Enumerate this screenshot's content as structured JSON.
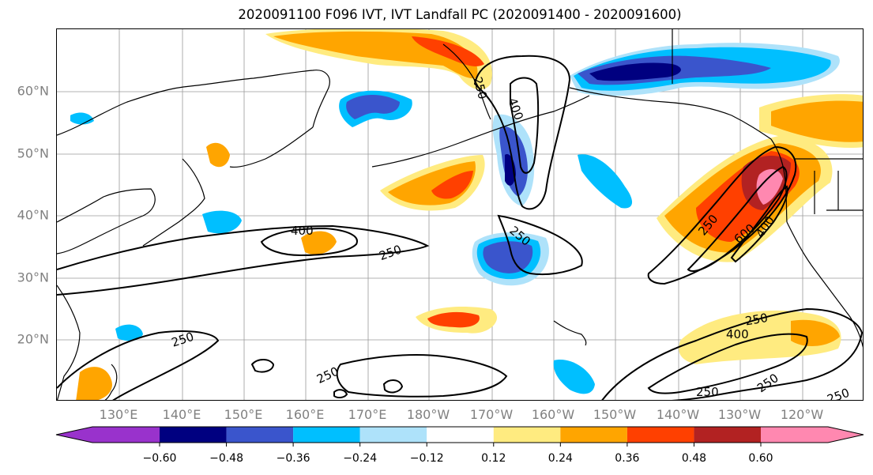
{
  "title": "2020091100 F096 IVT, IVT Landfall PC (2020091400 - 2020091600)",
  "lat_labels": [
    "60°N",
    "50°N",
    "40°N",
    "30°N",
    "20°N"
  ],
  "lat_values": [
    60,
    50,
    40,
    30,
    20
  ],
  "lon_labels": [
    "130°E",
    "140°E",
    "150°E",
    "160°E",
    "170°E",
    "180°W",
    "170°W",
    "160°W",
    "150°W",
    "140°W",
    "130°W",
    "120°W"
  ],
  "lon_values": [
    130,
    140,
    150,
    160,
    170,
    180,
    190,
    200,
    210,
    220,
    230,
    240
  ],
  "contour_labels": [
    "250",
    "400",
    "400",
    "250",
    "250",
    "250",
    "250",
    "600",
    "400",
    "250",
    "400",
    "250",
    "250",
    "250",
    "250"
  ],
  "colorbar": {
    "tick_labels": [
      "−0.60",
      "−0.48",
      "−0.36",
      "−0.24",
      "−0.12",
      "0.12",
      "0.24",
      "0.36",
      "0.48",
      "0.60"
    ],
    "colors": [
      "#9932cc",
      "#000080",
      "#3a55cc",
      "#00bfff",
      "#aee2fa",
      "#ffffff",
      "#ffeb80",
      "#ffa500",
      "#ff4000",
      "#b22222",
      "#ff88b0"
    ]
  },
  "legend": {
    "pos_colors": [
      "#ffeb80",
      "#ffa500",
      "#ff4000",
      "#b22222",
      "#ff88b0"
    ],
    "neg_colors": [
      "#aee2fa",
      "#00bfff",
      "#3a55cc",
      "#000080",
      "#9932cc"
    ]
  }
}
